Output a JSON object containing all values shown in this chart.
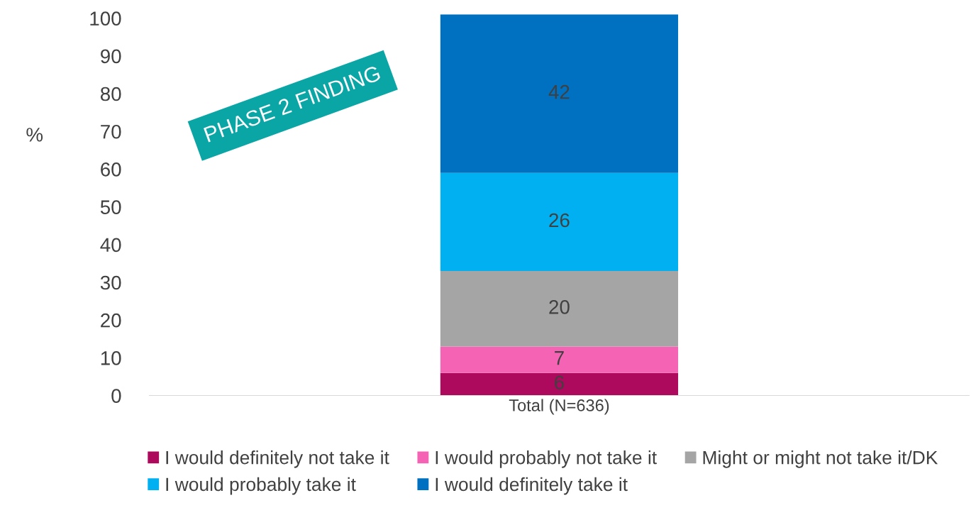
{
  "chart_data": {
    "type": "bar",
    "stacked": true,
    "ylabel": "%",
    "categories": [
      "Total (N=636)"
    ],
    "series": [
      {
        "name": "I would definitely not take it",
        "color": "#ad0a5e",
        "values": [
          6
        ]
      },
      {
        "name": "I would probably not take it",
        "color": "#f564b4",
        "values": [
          7
        ]
      },
      {
        "name": "Might or might not take it/DK",
        "color": "#a5a5a5",
        "values": [
          20
        ]
      },
      {
        "name": "I would probably take it",
        "color": "#00b0f0",
        "values": [
          26
        ]
      },
      {
        "name": "I would definitely take it",
        "color": "#0070c0",
        "values": [
          42
        ]
      }
    ],
    "ylim": [
      0,
      101
    ],
    "yticks": [
      0,
      10,
      20,
      30,
      40,
      50,
      60,
      70,
      80,
      90,
      100
    ],
    "data_labels": true,
    "grid": false,
    "legend": "bottom",
    "annotations": [
      "PHASE 2 FINDING"
    ]
  }
}
